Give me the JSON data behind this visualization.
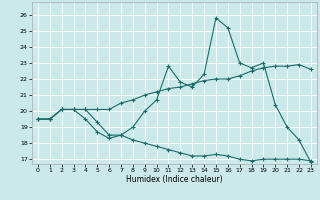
{
  "title": "",
  "xlabel": "Humidex (Indice chaleur)",
  "ylabel": "",
  "bg_color": "#cce9e9",
  "line_color": "#1a6b6b",
  "xlim": [
    -0.5,
    23.5
  ],
  "ylim": [
    16.7,
    26.8
  ],
  "yticks": [
    17,
    18,
    19,
    20,
    21,
    22,
    23,
    24,
    25,
    26
  ],
  "xticks": [
    0,
    1,
    2,
    3,
    4,
    5,
    6,
    7,
    8,
    9,
    10,
    11,
    12,
    13,
    14,
    15,
    16,
    17,
    18,
    19,
    20,
    21,
    22,
    23
  ],
  "line1_x": [
    0,
    1,
    2,
    3,
    4,
    5,
    6,
    7,
    8,
    9,
    10,
    11,
    12,
    13,
    14,
    15,
    16,
    17,
    18,
    19,
    20,
    21,
    22,
    23
  ],
  "line1_y": [
    19.5,
    19.5,
    20.1,
    20.1,
    19.5,
    18.7,
    18.3,
    18.5,
    19.0,
    20.0,
    20.7,
    22.8,
    21.8,
    21.5,
    22.3,
    25.8,
    25.2,
    23.0,
    22.7,
    23.0,
    20.4,
    19.0,
    18.2,
    16.8
  ],
  "line2_x": [
    0,
    1,
    2,
    3,
    4,
    5,
    6,
    7,
    8,
    9,
    10,
    11,
    12,
    13,
    14,
    15,
    16,
    17,
    18,
    19,
    20,
    21,
    22,
    23
  ],
  "line2_y": [
    19.5,
    19.5,
    20.1,
    20.1,
    20.1,
    20.1,
    20.1,
    20.5,
    20.7,
    21.0,
    21.2,
    21.4,
    21.5,
    21.7,
    21.9,
    22.0,
    22.0,
    22.2,
    22.5,
    22.7,
    22.8,
    22.8,
    22.9,
    22.6
  ],
  "line3_x": [
    0,
    1,
    2,
    3,
    4,
    5,
    6,
    7,
    8,
    9,
    10,
    11,
    12,
    13,
    14,
    15,
    16,
    17,
    18,
    19,
    20,
    21,
    22,
    23
  ],
  "line3_y": [
    19.5,
    19.5,
    20.1,
    20.1,
    20.1,
    19.3,
    18.5,
    18.5,
    18.2,
    18.0,
    17.8,
    17.6,
    17.4,
    17.2,
    17.2,
    17.3,
    17.2,
    17.0,
    16.9,
    17.0,
    17.0,
    17.0,
    17.0,
    16.9
  ]
}
